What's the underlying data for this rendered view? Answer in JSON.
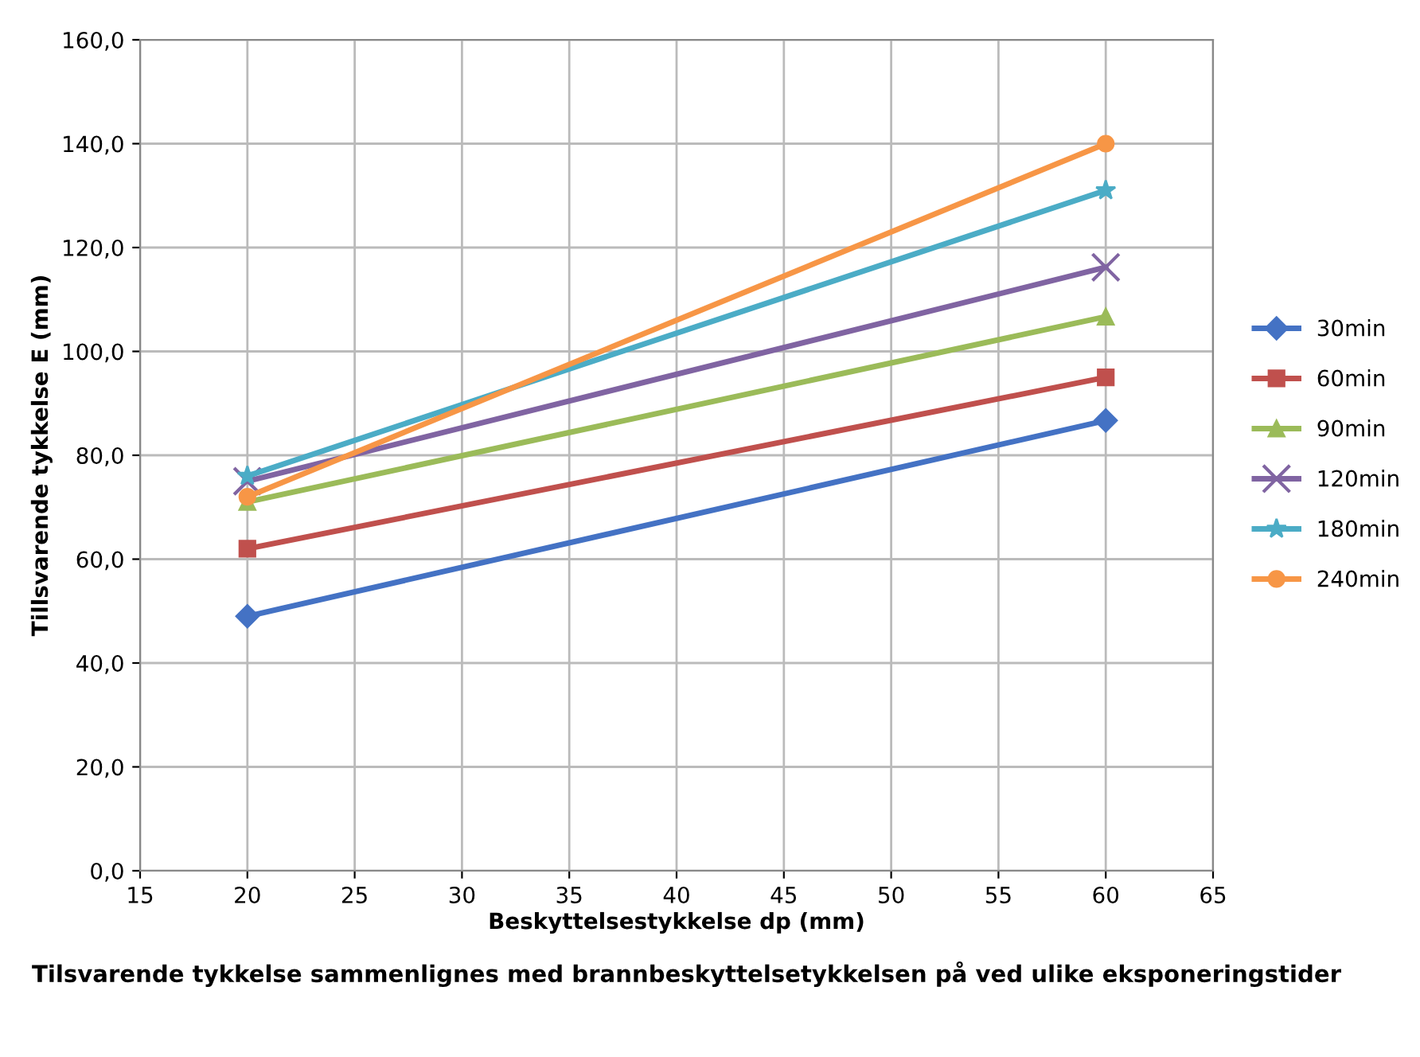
{
  "chart_data": {
    "type": "line",
    "xlabel": "Beskyttelsestykkelse dp (mm)",
    "ylabel": "Tillsvarende tykkelse E (mm)",
    "annotations": [
      "Tilsvarende tykkelse sammenlignes med brannbeskyttelsetykkelsen på ved ulike eksponeringstider"
    ],
    "x": [
      20,
      60
    ],
    "series": [
      {
        "name": "30min",
        "color": "#4472c4",
        "marker": "diamond",
        "values": [
          49,
          86.7
        ]
      },
      {
        "name": "60min",
        "color": "#c0504d",
        "marker": "square",
        "values": [
          62,
          95
        ]
      },
      {
        "name": "90min",
        "color": "#9bbb59",
        "marker": "triangle",
        "values": [
          71,
          106.7
        ]
      },
      {
        "name": "120min",
        "color": "#8064a2",
        "marker": "cross",
        "values": [
          75,
          116.2
        ]
      },
      {
        "name": "180min",
        "color": "#4bacc6",
        "marker": "star",
        "values": [
          76,
          131
        ]
      },
      {
        "name": "240min",
        "color": "#f79646",
        "marker": "circle",
        "values": [
          72,
          140
        ]
      }
    ],
    "xlim": [
      15,
      65
    ],
    "xticks": [
      15,
      20,
      25,
      30,
      35,
      40,
      45,
      50,
      55,
      60,
      65
    ],
    "ylim": [
      0,
      160
    ],
    "yticks": [
      {
        "value": 0,
        "label": "0,0"
      },
      {
        "value": 20,
        "label": "20,0"
      },
      {
        "value": 40,
        "label": "40,0"
      },
      {
        "value": 60,
        "label": "60,0"
      },
      {
        "value": 80,
        "label": "80,0"
      },
      {
        "value": 100,
        "label": "100,0"
      },
      {
        "value": 120,
        "label": "120,0"
      },
      {
        "value": 140,
        "label": "140,0"
      },
      {
        "value": 160,
        "label": "160,0"
      }
    ],
    "grid": true,
    "legend": "right",
    "line_style": "solid"
  }
}
